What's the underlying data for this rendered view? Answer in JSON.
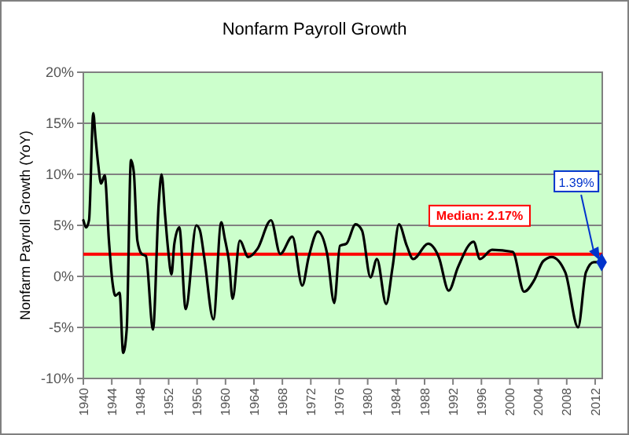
{
  "chart_data": {
    "type": "line",
    "title": "Nonfarm Payroll Growth",
    "ylabel": "Nonfarm Payroll Growth (YoY)",
    "xlim": [
      1940,
      2013
    ],
    "xticks": [
      1940,
      1944,
      1948,
      1952,
      1956,
      1960,
      1964,
      1968,
      1972,
      1976,
      1980,
      1984,
      1988,
      1992,
      1996,
      2000,
      2004,
      2008,
      2012
    ],
    "ylim": [
      -10,
      20
    ],
    "yticks": [
      {
        "value": -10,
        "label": "-10%"
      },
      {
        "value": -5,
        "label": "-5%"
      },
      {
        "value": 0,
        "label": "0%"
      },
      {
        "value": 5,
        "label": "5%"
      },
      {
        "value": 10,
        "label": "10%"
      },
      {
        "value": 15,
        "label": "15%"
      },
      {
        "value": 20,
        "label": "20%"
      }
    ],
    "grid": "y",
    "line_style": "solid",
    "series": [
      {
        "color": "#000000",
        "marker": "none",
        "x": [
          1940,
          1940.4,
          1940.8,
          1941.4,
          1941.7,
          1942.1,
          1942.5,
          1943,
          1943.6,
          1944.1,
          1944.5,
          1945.1,
          1945.6,
          1946.1,
          1946.7,
          1947.1,
          1947.6,
          1948.2,
          1948.8,
          1949.8,
          1950.6,
          1951,
          1951.5,
          1951.9,
          1952.4,
          1952.8,
          1953.5,
          1954.4,
          1955.9,
          1956.4,
          1957,
          1958.3,
          1959.4,
          1959.9,
          1960.5,
          1961,
          1962,
          1963.2,
          1964.5,
          1966.4,
          1967.7,
          1969.4,
          1970.8,
          1971.7,
          1973,
          1974.3,
          1975.3,
          1976.1,
          1977,
          1978.3,
          1979.2,
          1980.4,
          1981.3,
          1982.6,
          1983.5,
          1984.4,
          1985.5,
          1986.4,
          1988.5,
          1990,
          1991.4,
          1992.7,
          1994.9,
          1995.8,
          1997.5,
          2000.4,
          2002,
          2003.4,
          2004.7,
          2005.9,
          2007.8,
          2009.6,
          2010.7,
          2011.8,
          2012.9
        ],
        "values": [
          5.5,
          4.8,
          5.5,
          16,
          13.7,
          10.9,
          9.1,
          9.9,
          3.5,
          -0.6,
          -1.9,
          -1.6,
          -7.5,
          -5.2,
          11.4,
          10.2,
          3.5,
          2.2,
          2,
          -5.2,
          7.1,
          10,
          6,
          2.8,
          0.2,
          3.2,
          4.8,
          -3.2,
          5,
          4.5,
          1.9,
          -4.2,
          5.3,
          3.7,
          1.4,
          -2.2,
          3.5,
          1.9,
          2.7,
          5.5,
          2.2,
          3.9,
          -0.9,
          1.9,
          4.4,
          2.2,
          -2.6,
          3,
          3.2,
          5.1,
          4.5,
          -0.1,
          1.7,
          -2.7,
          0.9,
          5.1,
          3,
          1.7,
          3.2,
          1.9,
          -1.4,
          0.9,
          3.4,
          1.7,
          2.6,
          2.4,
          -1.5,
          -0.4,
          1.5,
          1.9,
          0.4,
          -5,
          0.4,
          1.4,
          1.4
        ]
      },
      {
        "type": "scatter",
        "color": "#0033cc",
        "marker": "diamond",
        "x": [
          2012.9
        ],
        "values": [
          1.39
        ]
      }
    ],
    "ref_lines": [
      {
        "axis": "y",
        "value": 2.17,
        "label": "Median: 2.17%",
        "color": "#ff0000"
      }
    ],
    "annotations": [
      {
        "text": "1.39%",
        "x": 2012.9,
        "y": 1.39
      }
    ]
  }
}
